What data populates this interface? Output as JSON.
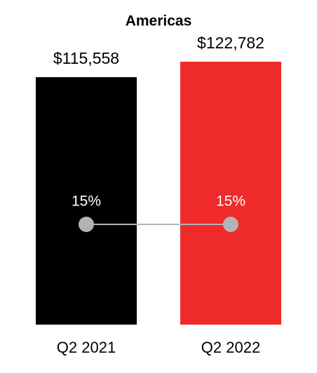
{
  "chart_data": {
    "type": "bar",
    "title": "Americas",
    "categories": [
      "Q2 2021",
      "Q2 2022"
    ],
    "values": [
      115558,
      122782
    ],
    "value_labels": [
      "$115,558",
      "$122,782"
    ],
    "colors": [
      "#000000",
      "#ee2a2a"
    ],
    "line": {
      "values": [
        15,
        15
      ],
      "value_labels": [
        "15%",
        "15%"
      ],
      "color": "#b3b3b3"
    }
  }
}
